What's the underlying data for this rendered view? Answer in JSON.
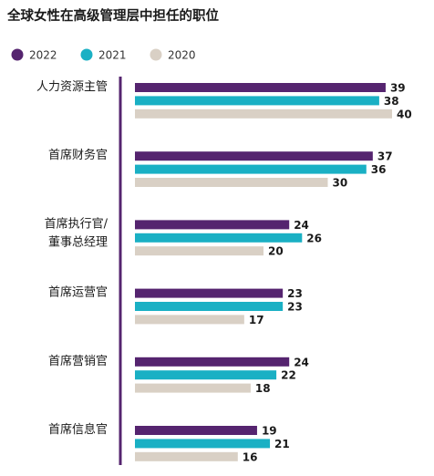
{
  "chart_data": {
    "type": "bar",
    "orientation": "horizontal",
    "title": "全球女性在高级管理层中担任的职位",
    "legend_position": "top-left",
    "grid": false,
    "xlim": [
      0,
      40
    ],
    "categories": [
      [
        "人力资源主管"
      ],
      [
        "首席财务官"
      ],
      [
        "首席执行官/",
        "董事总经理"
      ],
      [
        "首席运营官"
      ],
      [
        "首席营销官"
      ],
      [
        "首席信息官"
      ]
    ],
    "series": [
      {
        "name": "2022",
        "color": "#55246f",
        "values": [
          39,
          37,
          24,
          23,
          24,
          19
        ]
      },
      {
        "name": "2021",
        "color": "#1ab0c4",
        "values": [
          38,
          36,
          26,
          23,
          22,
          21
        ]
      },
      {
        "name": "2020",
        "color": "#d9d0c5",
        "values": [
          40,
          30,
          20,
          17,
          18,
          16
        ]
      }
    ],
    "axis_color": "#55246f"
  }
}
